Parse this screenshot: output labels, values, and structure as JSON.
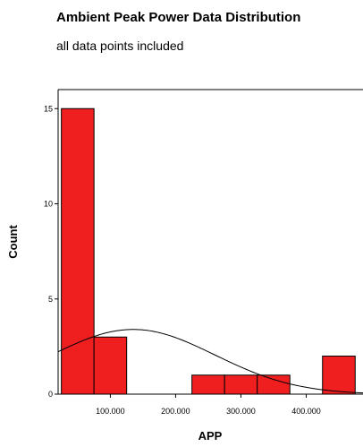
{
  "chart_data": {
    "type": "bar",
    "title": "Ambient Peak Power Data Distribution",
    "subtitle": "all data points included",
    "xlabel": "APP",
    "ylabel": "Count",
    "xlim": [
      20000,
      487000
    ],
    "ylim": [
      0,
      16
    ],
    "x_ticks": [
      {
        "value": 100000,
        "label": "100.000"
      },
      {
        "value": 200000,
        "label": "200.000"
      },
      {
        "value": 300000,
        "label": "300.000"
      },
      {
        "value": 400000,
        "label": "400.000"
      }
    ],
    "y_ticks": [
      {
        "value": 0,
        "label": "0"
      },
      {
        "value": 5,
        "label": "5"
      },
      {
        "value": 10,
        "label": "10"
      },
      {
        "value": 15,
        "label": "15"
      }
    ],
    "bins": [
      {
        "start": 25000,
        "end": 75000,
        "count": 15
      },
      {
        "start": 75000,
        "end": 125000,
        "count": 3
      },
      {
        "start": 225000,
        "end": 275000,
        "count": 1
      },
      {
        "start": 275000,
        "end": 325000,
        "count": 1
      },
      {
        "start": 325000,
        "end": 375000,
        "count": 1
      },
      {
        "start": 425000,
        "end": 475000,
        "count": 2
      }
    ],
    "normal_curve": {
      "mean": 135000,
      "std": 125000,
      "peak": 3.4
    },
    "colors": {
      "bar": "#f01f1f",
      "outline": "#000000"
    },
    "grid": false,
    "legend": "none"
  }
}
